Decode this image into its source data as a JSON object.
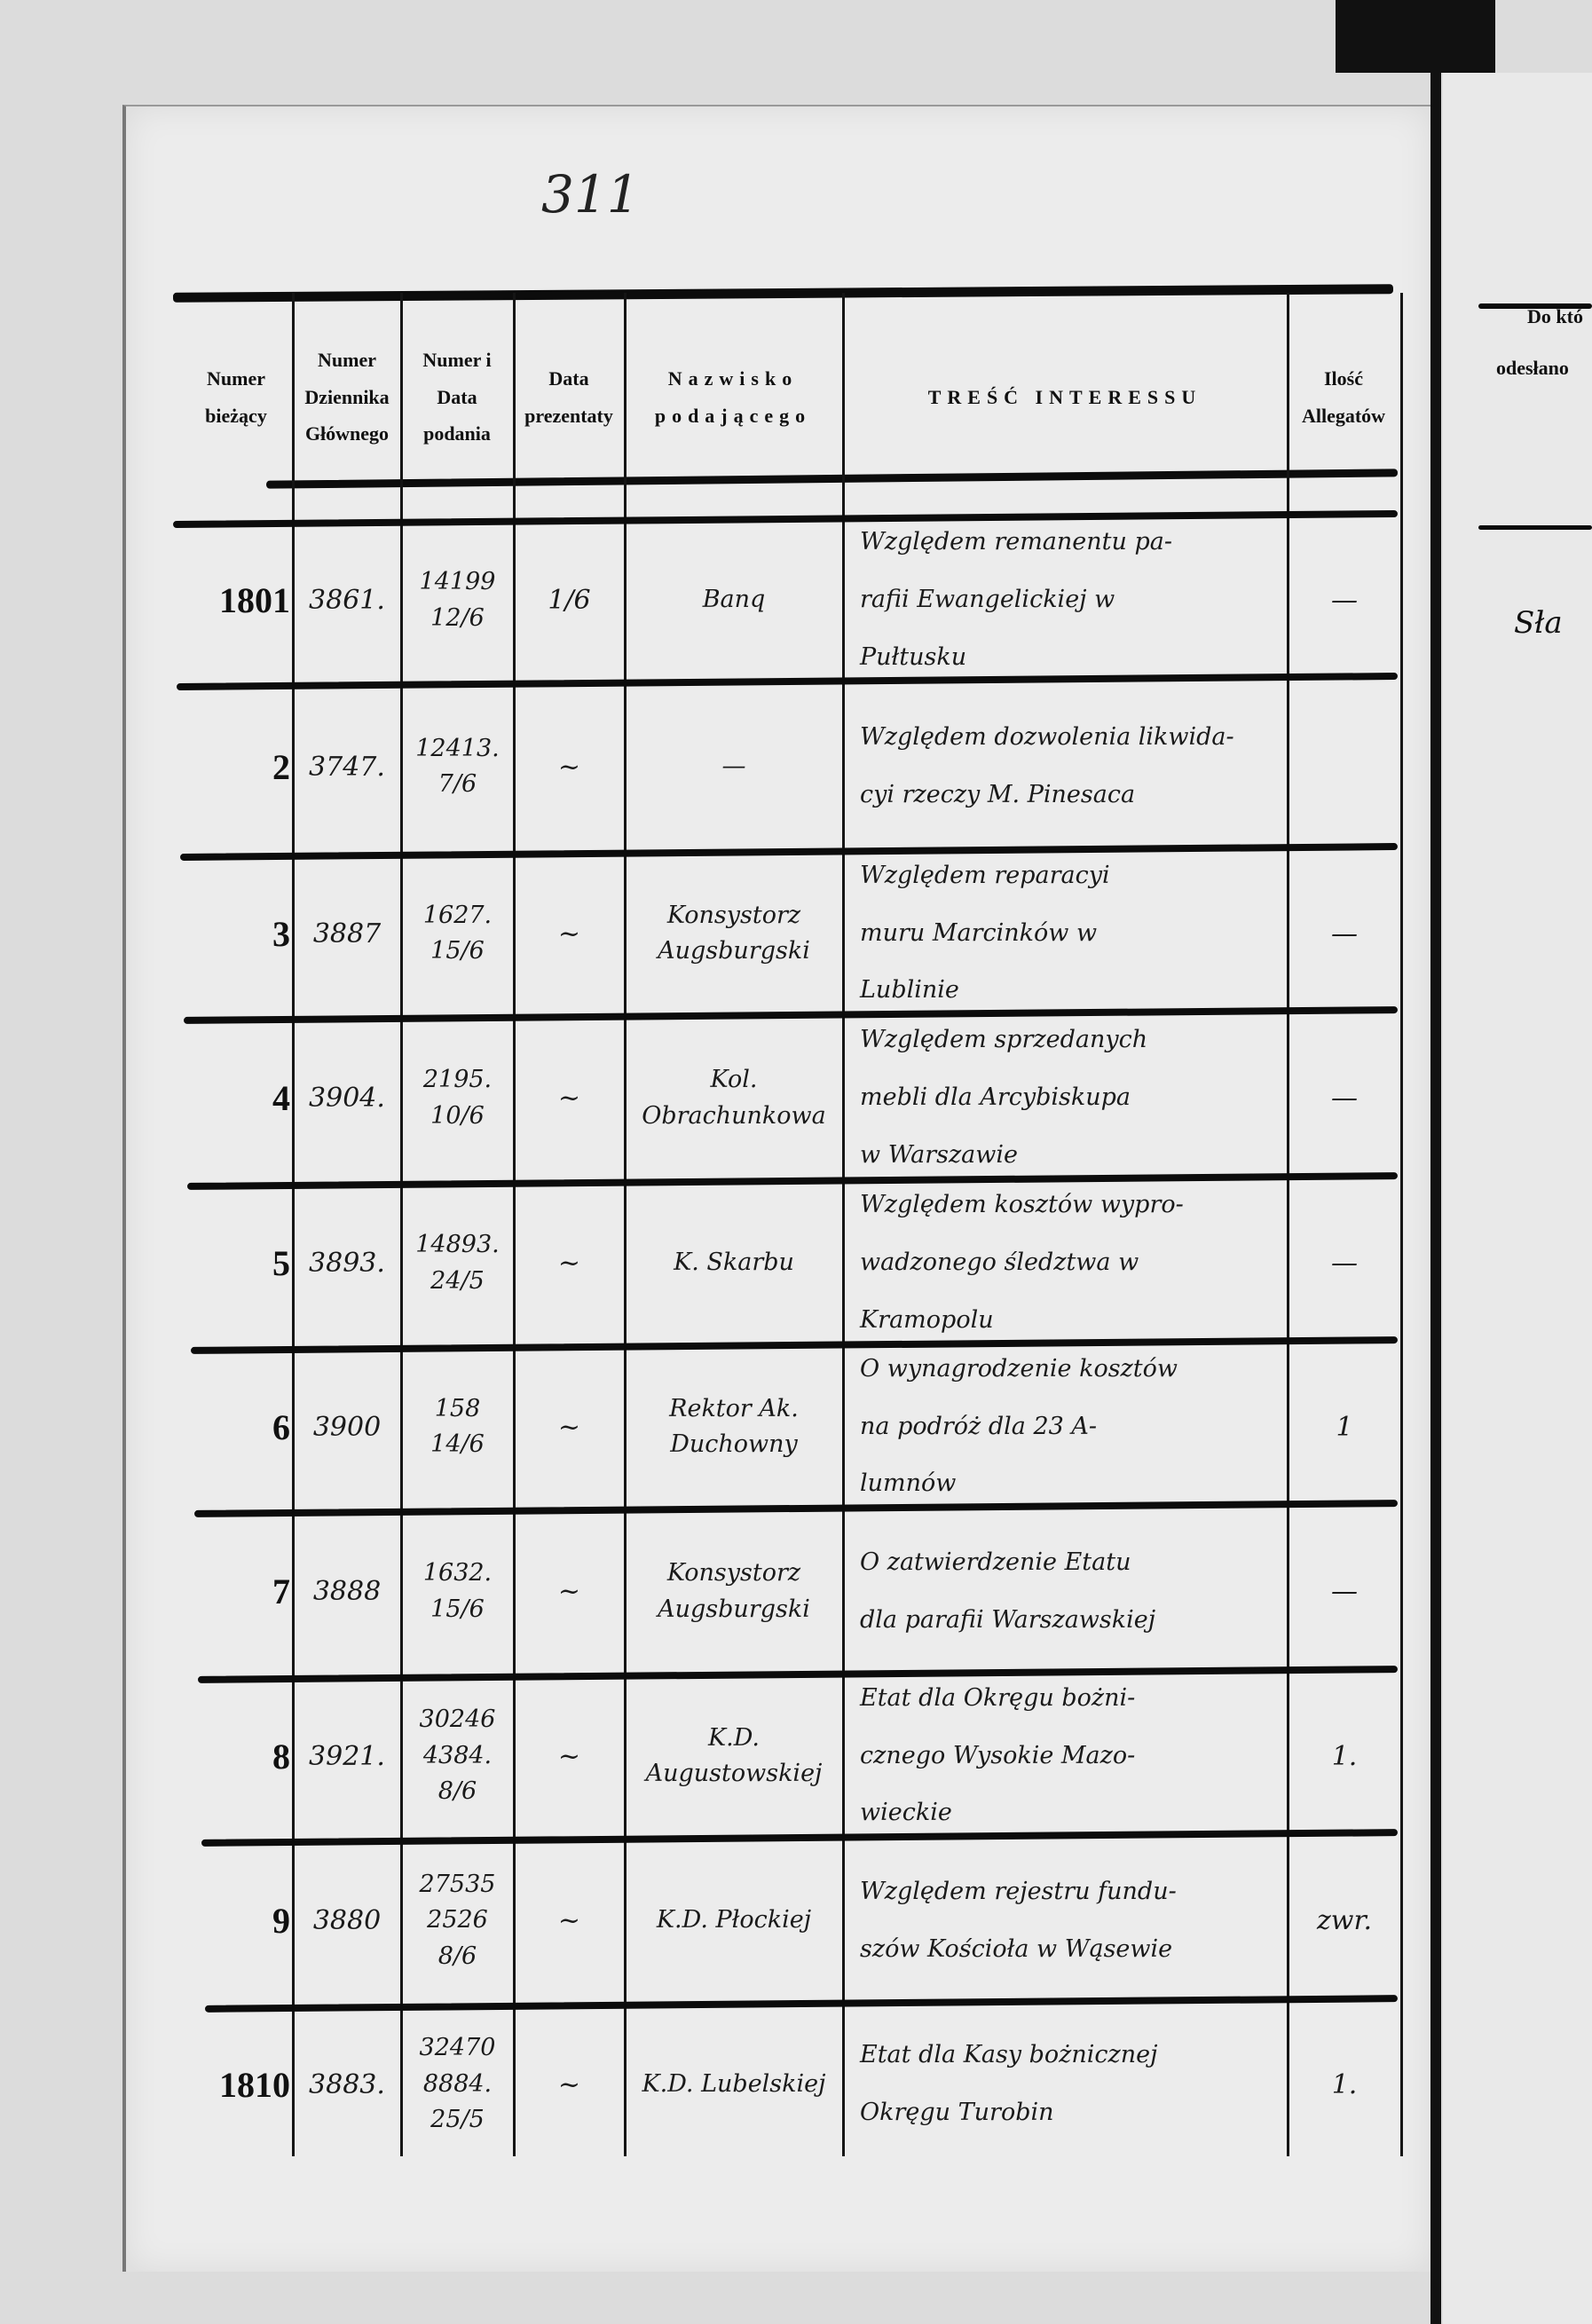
{
  "page_number": "311",
  "headers": {
    "numer_biezacy": "Numer bieżący",
    "numer_dziennika": "Numer Dziennika Głównego",
    "numer_data_podania": "Numer i Data podania",
    "data_prezentaty": "Data prezentaty",
    "nazwisko": "Nazwisko podającego",
    "tresc": "TREŚĆ INTERESSU",
    "ilosc": "Ilość Allegatów"
  },
  "right_page": {
    "header_line1": "Do któ",
    "header_line2": "odesłano",
    "first_entry": "Sła"
  },
  "rows": [
    {
      "nr": "1801",
      "dziennik": "3861.",
      "podanie": [
        "14199",
        "12/6"
      ],
      "prezentata": "1/6",
      "nazwisko": [
        "Banq"
      ],
      "tresc": [
        "Względem remanentu pa-",
        "rafii Ewangelickiej w",
        "Pułtusku"
      ],
      "allegaty": "—"
    },
    {
      "nr": "2",
      "dziennik": "3747.",
      "podanie": [
        "12413.",
        "7/6"
      ],
      "prezentata": "~",
      "nazwisko": [
        "—"
      ],
      "tresc": [
        "Względem dozwolenia likwida-",
        "cyi rzeczy M. Pinesaca"
      ],
      "allegaty": ""
    },
    {
      "nr": "3",
      "dziennik": "3887",
      "podanie": [
        "1627.",
        "15/6"
      ],
      "prezentata": "~",
      "nazwisko": [
        "Konsystorz",
        "Augsburgski"
      ],
      "tresc": [
        "Względem reparacyi",
        "muru Marcinków w",
        "Lublinie"
      ],
      "allegaty": "—"
    },
    {
      "nr": "4",
      "dziennik": "3904.",
      "podanie": [
        "2195.",
        "10/6"
      ],
      "prezentata": "~",
      "nazwisko": [
        "Kol. Obrachunkowa"
      ],
      "tresc": [
        "Względem sprzedanych",
        "mebli dla Arcybiskupa",
        "w Warszawie"
      ],
      "allegaty": "—"
    },
    {
      "nr": "5",
      "dziennik": "3893.",
      "podanie": [
        "14893.",
        "24/5"
      ],
      "prezentata": "~",
      "nazwisko": [
        "K. Skarbu"
      ],
      "tresc": [
        "Względem kosztów wypro-",
        "wadzonego śledztwa w",
        "Kramopolu"
      ],
      "allegaty": "—"
    },
    {
      "nr": "6",
      "dziennik": "3900",
      "podanie": [
        "158",
        "14/6"
      ],
      "prezentata": "~",
      "nazwisko": [
        "Rektor Ak.",
        "Duchowny"
      ],
      "tresc": [
        "O wynagrodzenie kosztów",
        "na podróż dla 23 A-",
        "lumnów"
      ],
      "allegaty": "1"
    },
    {
      "nr": "7",
      "dziennik": "3888",
      "podanie": [
        "1632.",
        "15/6"
      ],
      "prezentata": "~",
      "nazwisko": [
        "Konsystorz",
        "Augsburgski"
      ],
      "tresc": [
        "O zatwierdzenie Etatu",
        "dla parafii Warszawskiej"
      ],
      "allegaty": "—"
    },
    {
      "nr": "8",
      "dziennik": "3921.",
      "podanie": [
        "30246",
        "4384.",
        "8/6"
      ],
      "prezentata": "~",
      "nazwisko": [
        "K.D. Augustowskiej"
      ],
      "tresc": [
        "Etat dla Okręgu bożni-",
        "cznego Wysokie Mazo-",
        "wieckie"
      ],
      "allegaty": "1."
    },
    {
      "nr": "9",
      "dziennik": "3880",
      "podanie": [
        "27535",
        "2526",
        "8/6"
      ],
      "prezentata": "~",
      "nazwisko": [
        "K.D. Płockiej"
      ],
      "tresc": [
        "Względem rejestru fundu-",
        "szów Kościoła w Wąsewie"
      ],
      "allegaty": "zwr."
    },
    {
      "nr": "1810",
      "dziennik": "3883.",
      "podanie": [
        "32470",
        "8884.",
        "25/5"
      ],
      "prezentata": "~",
      "nazwisko": [
        "K.D. Lubelskiej"
      ],
      "tresc": [
        "Etat dla Kasy bożnicznej",
        "Okręgu Turobin"
      ],
      "allegaty": "1."
    }
  ]
}
